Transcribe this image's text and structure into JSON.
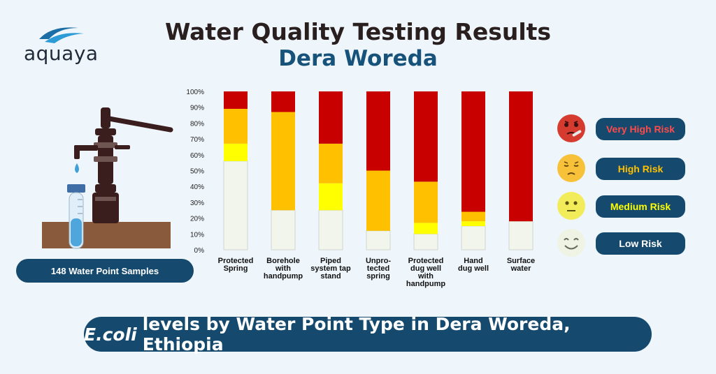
{
  "header": {
    "title": "Water Quality Testing Results",
    "subtitle": "Dera Woreda"
  },
  "logo": {
    "text": "aquaya"
  },
  "samples": {
    "label": "148 Water Point Samples"
  },
  "footer": {
    "emphasis": "E.coli",
    "text": "levels by Water Point Type in Dera Woreda, Ethiopia"
  },
  "legend": [
    {
      "label": "Very High Risk",
      "color": "#c80000",
      "text_color": "#ff4a4a",
      "face": "very-high-risk-face-icon"
    },
    {
      "label": "High Risk",
      "color": "#ffc000",
      "text_color": "#ffc000",
      "face": "high-risk-face-icon"
    },
    {
      "label": "Medium Risk",
      "color": "#ffff00",
      "text_color": "#ffff00",
      "face": "medium-risk-face-icon"
    },
    {
      "label": "Low Risk",
      "color": "#f1f5ec",
      "text_color": "#ffffff",
      "face": "low-risk-face-icon"
    }
  ],
  "chart_data": {
    "type": "bar",
    "stacked": true,
    "ylim": [
      0,
      100
    ],
    "yticks": [
      "0%",
      "10%",
      "20%",
      "30%",
      "40%",
      "50%",
      "60%",
      "70%",
      "80%",
      "90%",
      "100%"
    ],
    "categories": [
      [
        "Protected",
        "Spring"
      ],
      [
        "Borehole",
        "with",
        "handpump"
      ],
      [
        "Piped",
        "system tap",
        "stand"
      ],
      [
        "Unpro-",
        "tected",
        "spring"
      ],
      [
        "Protected",
        "dug well",
        "with",
        "handpump"
      ],
      [
        "Hand",
        "dug well"
      ],
      [
        "Surface",
        "water"
      ]
    ],
    "series": [
      {
        "name": "Low Risk",
        "color": "#f1f5ec",
        "values": [
          56,
          25,
          25,
          12,
          10,
          15,
          18
        ]
      },
      {
        "name": "Medium Risk",
        "color": "#ffff00",
        "values": [
          11,
          0,
          17,
          0,
          7,
          3,
          0
        ]
      },
      {
        "name": "High Risk",
        "color": "#ffc000",
        "values": [
          22,
          62,
          25,
          38,
          26,
          6,
          0
        ]
      },
      {
        "name": "Very High Risk",
        "color": "#c80000",
        "values": [
          11,
          13,
          33,
          50,
          57,
          76,
          82
        ]
      }
    ]
  }
}
